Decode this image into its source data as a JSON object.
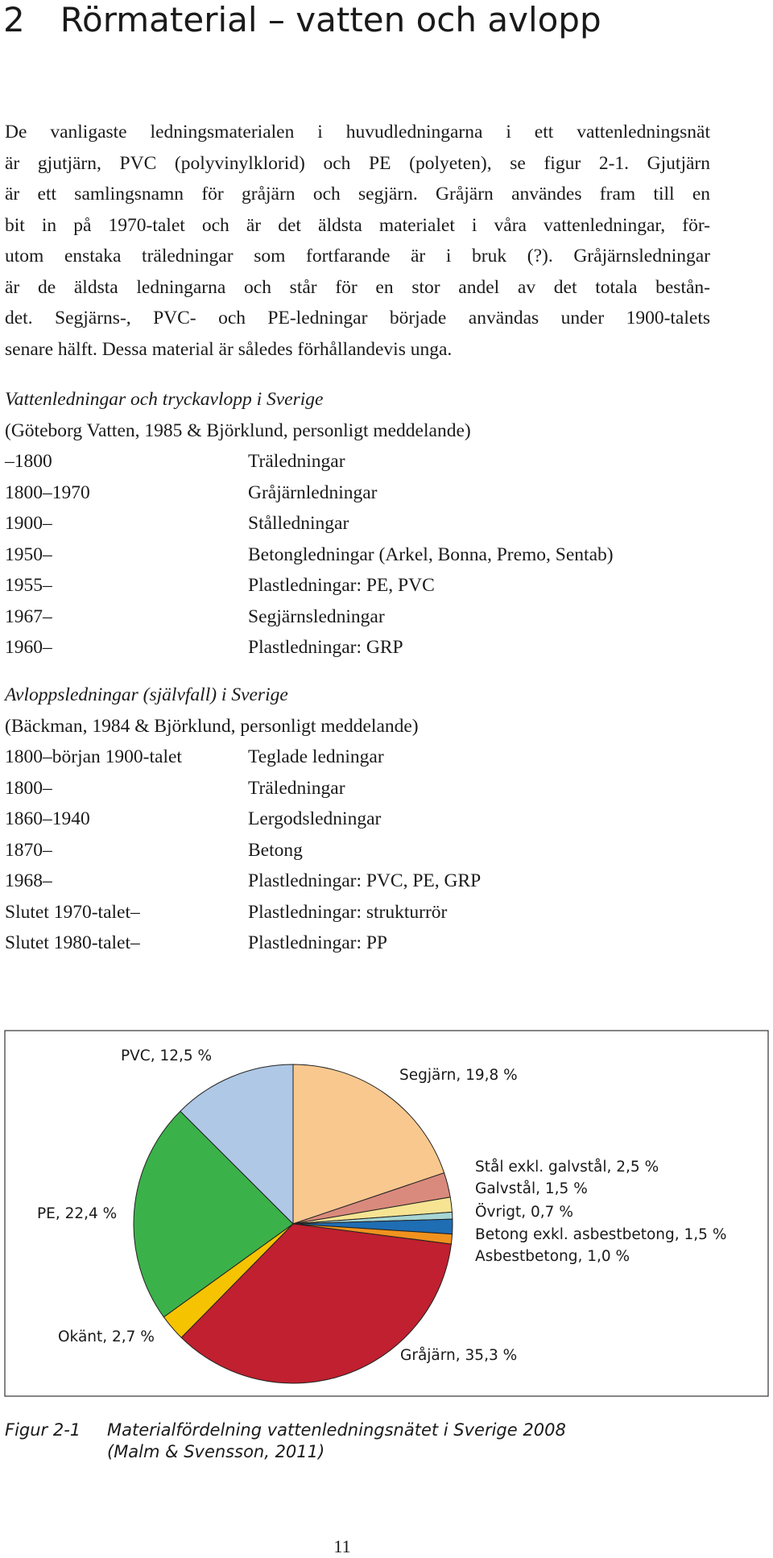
{
  "heading": {
    "number": "2",
    "title": "Rörmaterial – vatten och avlopp"
  },
  "intro_lines": [
    "De vanligaste ledningsmaterialen i huvudledningarna i ett vattenledningsnät",
    "är gjutjärn, PVC (polyvinylklorid) och PE (polyeten), se figur 2-1. Gjutjärn",
    "är ett samlingsnamn för gråjärn och segjärn. Gråjärn användes fram till en",
    "bit in på 1970-talet och är det äldsta materialet i våra vattenledningar, för-",
    "utom enstaka träledningar som fortfarande är i bruk (?). Gråjärnsledningar",
    "är de äldsta ledningarna och står för en stor andel av det totala bestån-",
    "det. Segjärns-, PVC- och PE-ledningar började användas under 1900-talets",
    "senare hälft. Dessa material är således förhållandevis unga."
  ],
  "sections": [
    {
      "title": "Vattenledningar och tryckavlopp i Sverige",
      "source": "(Göteborg Vatten, 1985 & Björklund, personligt meddelande)",
      "rows": [
        [
          "–1800",
          "Träledningar"
        ],
        [
          "1800–1970",
          "Gråjärnledningar"
        ],
        [
          "1900–",
          "Stålledningar"
        ],
        [
          "1950–",
          "Betongledningar (Arkel, Bonna, Premo, Sentab)"
        ],
        [
          "1955–",
          "Plastledningar: PE, PVC"
        ],
        [
          "1967–",
          "Segjärnsledningar"
        ],
        [
          "1960–",
          "Plastledningar: GRP"
        ]
      ]
    },
    {
      "title": "Avloppsledningar (självfall) i Sverige",
      "source": "(Bäckman, 1984 & Björklund, personligt meddelande)",
      "rows": [
        [
          "1800–början 1900-talet",
          "Teglade ledningar"
        ],
        [
          "1800–",
          "Träledningar"
        ],
        [
          "1860–1940",
          "Lergodsledningar"
        ],
        [
          "1870–",
          "Betong"
        ],
        [
          "1968–",
          "Plastledningar: PVC, PE, GRP"
        ],
        [
          "Slutet 1970-talet–",
          "Plastledningar: strukturrör"
        ],
        [
          "Slutet 1980-talet–",
          "Plastledningar: PP"
        ]
      ]
    }
  ],
  "chart_data": {
    "type": "pie",
    "categories": [
      "Segjärn, 19,8 %",
      "Stål exkl. galvstål, 2,5 %",
      "Galvstål, 1,5 %",
      "Övrigt, 0,7 %",
      "Betong exkl. asbestbetong, 1,5 %",
      "Asbestbetong, 1,0 %",
      "Gråjärn, 35,3 %",
      "Okänt, 2,7 %",
      "PE, 22,4 %",
      "PVC, 12,5 %"
    ],
    "values": [
      19.8,
      2.5,
      1.5,
      0.7,
      1.5,
      1.0,
      35.3,
      2.7,
      22.4,
      12.5
    ],
    "colors": [
      "#f9c88f",
      "#d98a7c",
      "#f6e493",
      "#a6d5d3",
      "#1f6db3",
      "#f0921e",
      "#c0202f",
      "#f6c300",
      "#3bb14a",
      "#aec8e6"
    ]
  },
  "caption": {
    "label": "Figur 2-1",
    "lines": [
      "Materialfördelning vattenledningsnätet i Sverige 2008",
      "(Malm & Svensson, 2011)"
    ]
  },
  "page_number": "11"
}
